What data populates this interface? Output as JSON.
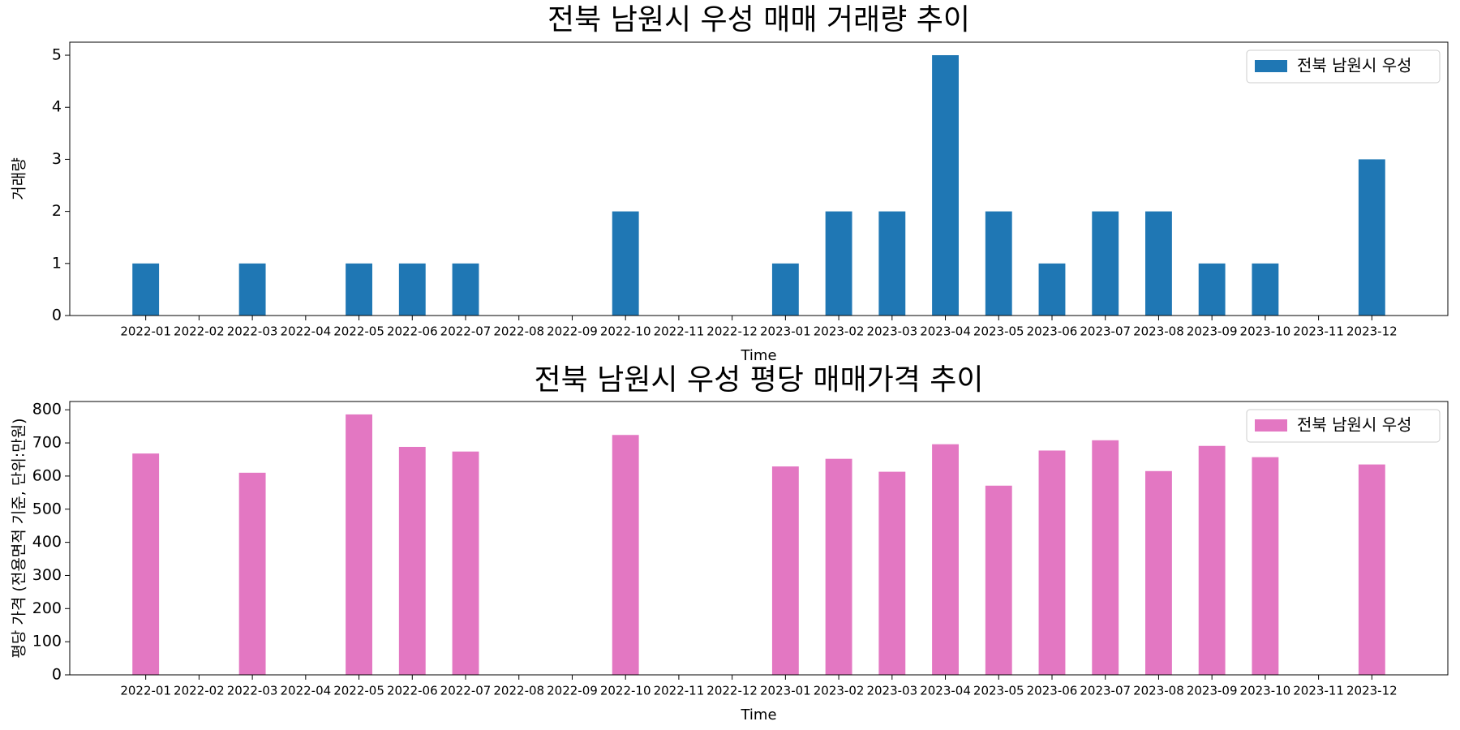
{
  "chart_data": [
    {
      "type": "bar",
      "title": "전북 남원시 우성 매매 거래량 추이",
      "x_label": "Time",
      "y_label": "거래량",
      "categories": [
        "2022-01",
        "2022-02",
        "2022-03",
        "2022-04",
        "2022-05",
        "2022-06",
        "2022-07",
        "2022-08",
        "2022-09",
        "2022-10",
        "2022-11",
        "2022-12",
        "2023-01",
        "2023-02",
        "2023-03",
        "2023-04",
        "2023-05",
        "2023-06",
        "2023-07",
        "2023-08",
        "2023-09",
        "2023-10",
        "2023-11",
        "2023-12"
      ],
      "series": [
        {
          "name": "전북 남원시 우성",
          "color": "#1f77b4",
          "values": [
            1,
            0,
            1,
            0,
            1,
            1,
            1,
            0,
            0,
            2,
            0,
            0,
            1,
            2,
            2,
            5,
            2,
            1,
            2,
            2,
            1,
            1,
            0,
            3
          ]
        }
      ],
      "ylim": [
        0,
        5.25
      ],
      "yticks": [
        0,
        1,
        2,
        3,
        4,
        5
      ],
      "legend": "upper right"
    },
    {
      "type": "bar",
      "title": "전북 남원시 우성 평당 매매가격 추이",
      "x_label": "Time",
      "y_label": "평당 가격 (전용면적 기준, 단위:만원)",
      "categories": [
        "2022-01",
        "2022-02",
        "2022-03",
        "2022-04",
        "2022-05",
        "2022-06",
        "2022-07",
        "2022-08",
        "2022-09",
        "2022-10",
        "2022-11",
        "2022-12",
        "2023-01",
        "2023-02",
        "2023-03",
        "2023-04",
        "2023-05",
        "2023-06",
        "2023-07",
        "2023-08",
        "2023-09",
        "2023-10",
        "2023-11",
        "2023-12"
      ],
      "series": [
        {
          "name": "전북 남원시 우성",
          "color": "#e377c2",
          "values": [
            668,
            null,
            610,
            null,
            786,
            688,
            674,
            null,
            null,
            724,
            null,
            null,
            629,
            652,
            613,
            696,
            571,
            677,
            708,
            615,
            691,
            657,
            null,
            635
          ]
        }
      ],
      "ylim": [
        0,
        825
      ],
      "yticks": [
        0,
        100,
        200,
        300,
        400,
        500,
        600,
        700,
        800
      ],
      "legend": "upper right"
    }
  ]
}
